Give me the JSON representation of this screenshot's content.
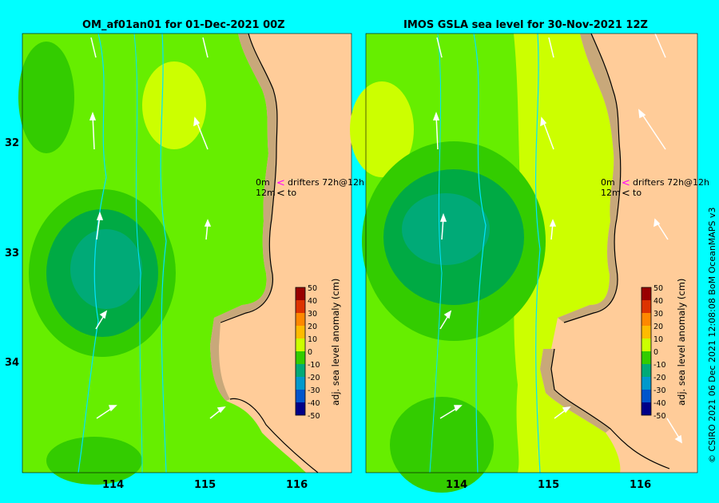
{
  "panels": [
    {
      "title": "OM_af01an01 for 01-Dec-2021 00Z",
      "legend": {
        "line1_prefix": "0m",
        "line1_suffix": "drifters 72h@12h",
        "line2_prefix": "12m",
        "line2_suffix": "to"
      },
      "colorbar_label": "adj. sea level anomaly (cm)"
    },
    {
      "title": "IMOS GSLA sea level  for 30-Nov-2021 12Z",
      "legend": {
        "line1_prefix": "0m",
        "line1_suffix": "drifters 72h@12h",
        "line2_prefix": "12m",
        "line2_suffix": "to"
      },
      "colorbar_label": "adj. sea level anomaly (cm)"
    }
  ],
  "y_ticks": [
    "32",
    "33",
    "34"
  ],
  "x_ticks": [
    "114",
    "115",
    "116"
  ],
  "colorbar_ticks": [
    "50",
    "40",
    "30",
    "20",
    "10",
    "0",
    "-10",
    "-20",
    "-30",
    "-40",
    "-50"
  ],
  "copyright": "© CSIRO 2021   06 Dec 2021 12:08:08 BoM OceanMAPS v3",
  "colors": {
    "background": "#00ffff",
    "land": "#ffcc99",
    "shelf": "#c8a87a",
    "sla_zero_green": "#33cc00",
    "sla_positive_yellow": "#ccff00",
    "sla_negative_teal": "#009966",
    "contour": "#00e5ff",
    "drifter_0m": "#ff00ff",
    "drifter_12m": "#000000"
  }
}
